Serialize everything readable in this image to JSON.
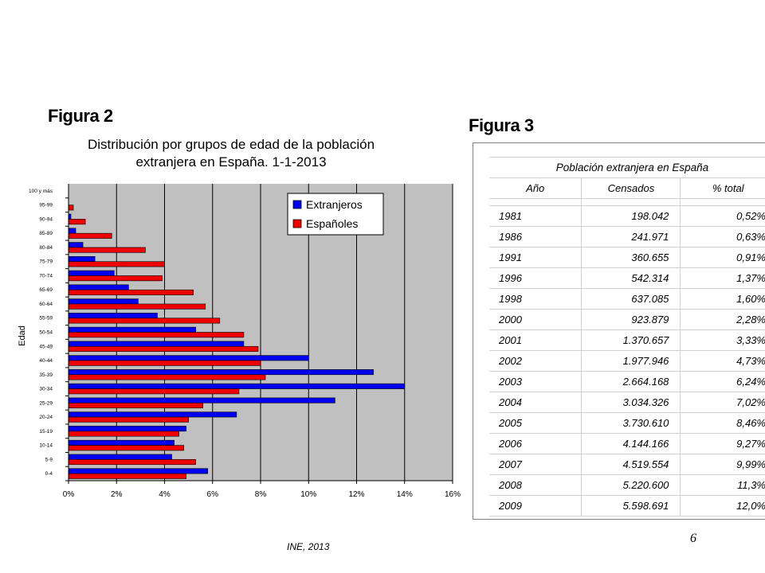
{
  "figure2": {
    "label": "Figura 2"
  },
  "figure3": {
    "label": "Figura 3"
  },
  "source_note": "INE, 2013",
  "page_number": "6",
  "colors": {
    "extranjeros": "#0000ee",
    "espanoles": "#ee0000",
    "plot_bg": "#c0c0c0"
  },
  "chart_data": {
    "type": "bar",
    "orientation": "horizontal",
    "title": "Distribución por grupos de edad de la población extranjera en España. 1-1-2013",
    "title_lines": [
      "Distribución por grupos de edad de la población",
      "extranjera en España. 1-1-2013"
    ],
    "ylabel": "Edad",
    "xlabel": "",
    "xlim": [
      0,
      16
    ],
    "x_ticks": [
      "0%",
      "2%",
      "4%",
      "6%",
      "8%",
      "10%",
      "12%",
      "14%",
      "16%"
    ],
    "grid": true,
    "legend_position": "top-right",
    "categories": [
      "0-4",
      "5-9",
      "10-14",
      "15-19",
      "20-24",
      "25-29",
      "30-34",
      "35-39",
      "40-44",
      "45-49",
      "50-54",
      "55-59",
      "60-64",
      "65-69",
      "70-74",
      "75-79",
      "80-84",
      "85-89",
      "90-94",
      "95-99",
      "100 y más"
    ],
    "series": [
      {
        "name": "Extranjeros",
        "values": [
          5.8,
          4.3,
          4.4,
          4.9,
          7.0,
          11.1,
          14.0,
          12.7,
          10.0,
          7.3,
          5.3,
          3.7,
          2.9,
          2.5,
          1.9,
          1.1,
          0.6,
          0.3,
          0.1,
          0.0,
          0.0
        ]
      },
      {
        "name": "Españoles",
        "values": [
          4.9,
          5.3,
          4.8,
          4.6,
          5.0,
          5.6,
          7.1,
          8.2,
          8.0,
          7.9,
          7.3,
          6.3,
          5.7,
          5.2,
          3.9,
          4.0,
          3.2,
          1.8,
          0.7,
          0.2,
          0.0
        ]
      }
    ]
  },
  "table": {
    "caption": "Población extranjera en España",
    "headers": [
      "Año",
      "Censados",
      "% total"
    ],
    "rows": [
      [
        "1981",
        "198.042",
        "0,52%"
      ],
      [
        "1986",
        "241.971",
        "0,63%"
      ],
      [
        "1991",
        "360.655",
        "0,91%"
      ],
      [
        "1996",
        "542.314",
        "1,37%"
      ],
      [
        "1998",
        "637.085",
        "1,60%"
      ],
      [
        "2000",
        "923.879",
        "2,28%"
      ],
      [
        "2001",
        "1.370.657",
        "3,33%"
      ],
      [
        "2002",
        "1.977.946",
        "4,73%"
      ],
      [
        "2003",
        "2.664.168",
        "6,24%"
      ],
      [
        "2004",
        "3.034.326",
        "7,02%"
      ],
      [
        "2005",
        "3.730.610",
        "8,46%"
      ],
      [
        "2006",
        "4.144.166",
        "9,27%"
      ],
      [
        "2007",
        "4.519.554",
        "9,99%"
      ],
      [
        "2008",
        "5.220.600",
        "11,3%"
      ],
      [
        "2009",
        "5.598.691",
        "12,0%"
      ]
    ]
  }
}
